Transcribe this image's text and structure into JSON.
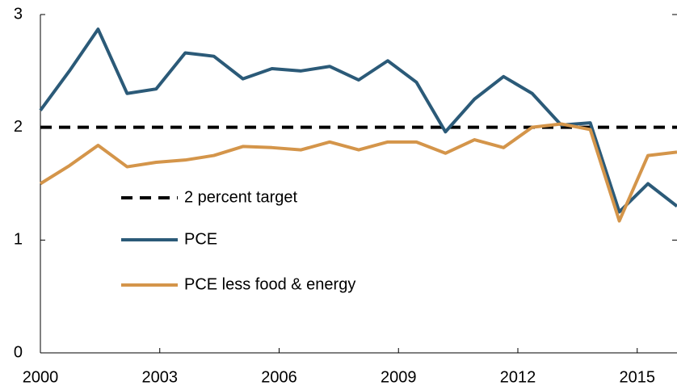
{
  "chart_data": {
    "type": "line",
    "x": [
      2000,
      2000.73,
      2001.45,
      2002.18,
      2002.91,
      2003.64,
      2004.36,
      2005.09,
      2005.82,
      2006.55,
      2007.27,
      2008,
      2008.73,
      2009.45,
      2010.18,
      2010.91,
      2011.64,
      2012.36,
      2013.09,
      2013.82,
      2014.55,
      2015.27,
      2016
    ],
    "series": [
      {
        "name": "PCE",
        "color": "#2b5a78",
        "values": [
          2.15,
          2.5,
          2.87,
          2.3,
          2.34,
          2.66,
          2.63,
          2.43,
          2.52,
          2.5,
          2.54,
          2.42,
          2.59,
          2.4,
          1.96,
          2.25,
          2.45,
          2.3,
          2.02,
          2.04,
          1.25,
          1.5,
          1.3
        ]
      },
      {
        "name": "PCE less food & energy",
        "color": "#d4954a",
        "values": [
          1.5,
          1.66,
          1.84,
          1.65,
          1.69,
          1.71,
          1.75,
          1.83,
          1.82,
          1.8,
          1.87,
          1.8,
          1.87,
          1.87,
          1.77,
          1.89,
          1.82,
          2.0,
          2.03,
          1.98,
          1.17,
          1.75,
          1.78
        ]
      }
    ],
    "reference_line": {
      "name": "2 percent target",
      "value": 2,
      "color": "#000000",
      "dashed": true
    },
    "xlim": [
      2000,
      2016
    ],
    "xticks": [
      2000,
      2003,
      2006,
      2009,
      2012,
      2015
    ],
    "ylim": [
      0,
      3
    ],
    "yticks": [
      0,
      1,
      2,
      3
    ]
  }
}
